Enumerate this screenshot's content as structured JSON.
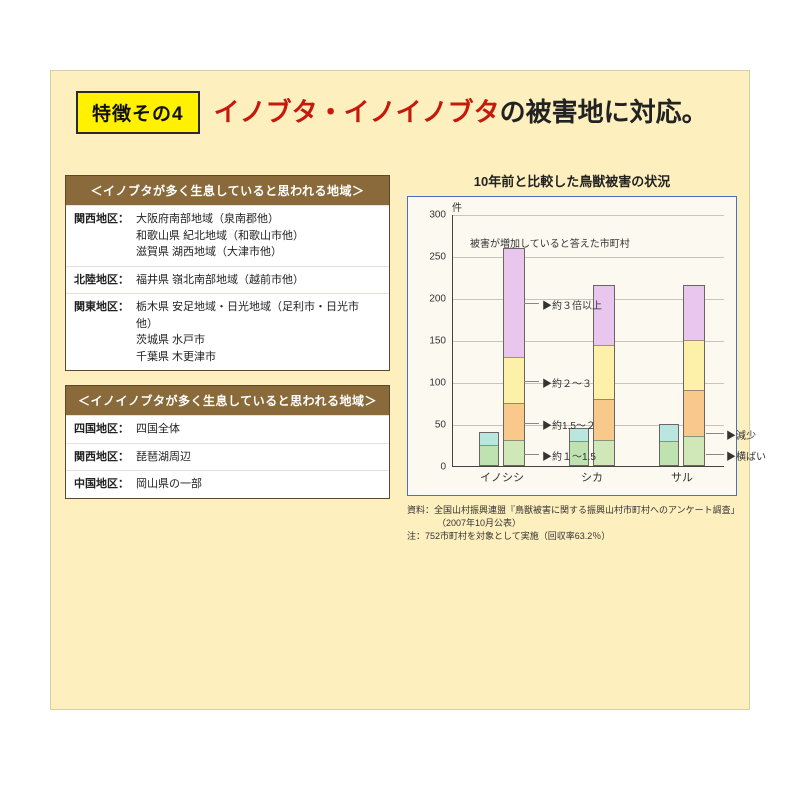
{
  "headline": {
    "badge": "特徴その4",
    "red": "イノブタ・イノイノブタ",
    "black": "の被害地に対応。"
  },
  "panels": {
    "inobuta": {
      "title": "＜イノブタが多く生息していると思われる地域＞",
      "rows": [
        {
          "region": "関西地区：",
          "text": "大阪府南部地域（泉南郡他）\n和歌山県 紀北地域（和歌山市他）\n滋賀県 湖西地域（大津市他）"
        },
        {
          "region": "北陸地区：",
          "text": "福井県 嶺北南部地域（越前市他）"
        },
        {
          "region": "関東地区：",
          "text": "栃木県 安足地域・日光地域（足利市・日光市他）\n茨城県 水戸市\n千葉県 木更津市"
        }
      ]
    },
    "inoinobuta": {
      "title": "＜イノイノブタが多く生息していると思われる地域＞",
      "rows": [
        {
          "region": "四国地区：",
          "text": "四国全体"
        },
        {
          "region": "関西地区：",
          "text": "琵琶湖周辺"
        },
        {
          "region": "中国地区：",
          "text": "岡山県の一部"
        }
      ]
    }
  },
  "chart": {
    "title": "10年前と比較した鳥獣被害の状況",
    "type": "stacked-bar",
    "y_unit": "件",
    "ylim": [
      0,
      300
    ],
    "ytick_step": 50,
    "yticks": [
      0,
      50,
      100,
      150,
      200,
      250,
      300
    ],
    "background_color": "#fcf9f1",
    "border_color": "#4a6fbf",
    "bar_border": "#6d6660",
    "annotation_top": "被害が増加していると答えた市町村",
    "segments": [
      {
        "key": "3x",
        "label": "約３倍以上",
        "color": "#e9c6ed"
      },
      {
        "key": "2_3",
        "label": "約２～３",
        "color": "#fdf0a8"
      },
      {
        "key": "15_2",
        "label": "約1.5～２",
        "color": "#f8c98a"
      },
      {
        "key": "1_15",
        "label": "約１～1.5",
        "color": "#d0e8b8"
      }
    ],
    "base_segments": [
      {
        "key": "dec",
        "label": "減少",
        "color": "#b9e7e0"
      },
      {
        "key": "flat",
        "label": "横ばい",
        "color": "#bfe3b0"
      }
    ],
    "groups": [
      {
        "label": "イノシシ",
        "base": {
          "dec": 15,
          "flat": 25
        },
        "inc": {
          "1_15": 30,
          "15_2": 45,
          "2_3": 55,
          "3x": 130
        },
        "inc_total": 260
      },
      {
        "label": "シカ",
        "base": {
          "dec": 15,
          "flat": 30
        },
        "inc": {
          "1_15": 30,
          "15_2": 50,
          "2_3": 65,
          "3x": 70
        },
        "inc_total": 215
      },
      {
        "label": "サル",
        "base": {
          "dec": 20,
          "flat": 30
        },
        "inc": {
          "1_15": 35,
          "15_2": 55,
          "2_3": 60,
          "3x": 65
        },
        "inc_total": 215
      }
    ]
  },
  "source": {
    "line1": "資料：全国山村振興連盟『鳥獣被害に関する振興山村市町村へのアンケート調査」",
    "line2": "（2007年10月公表）",
    "line3": "注：752市町村を対象として実施（回収率63.2％）"
  }
}
